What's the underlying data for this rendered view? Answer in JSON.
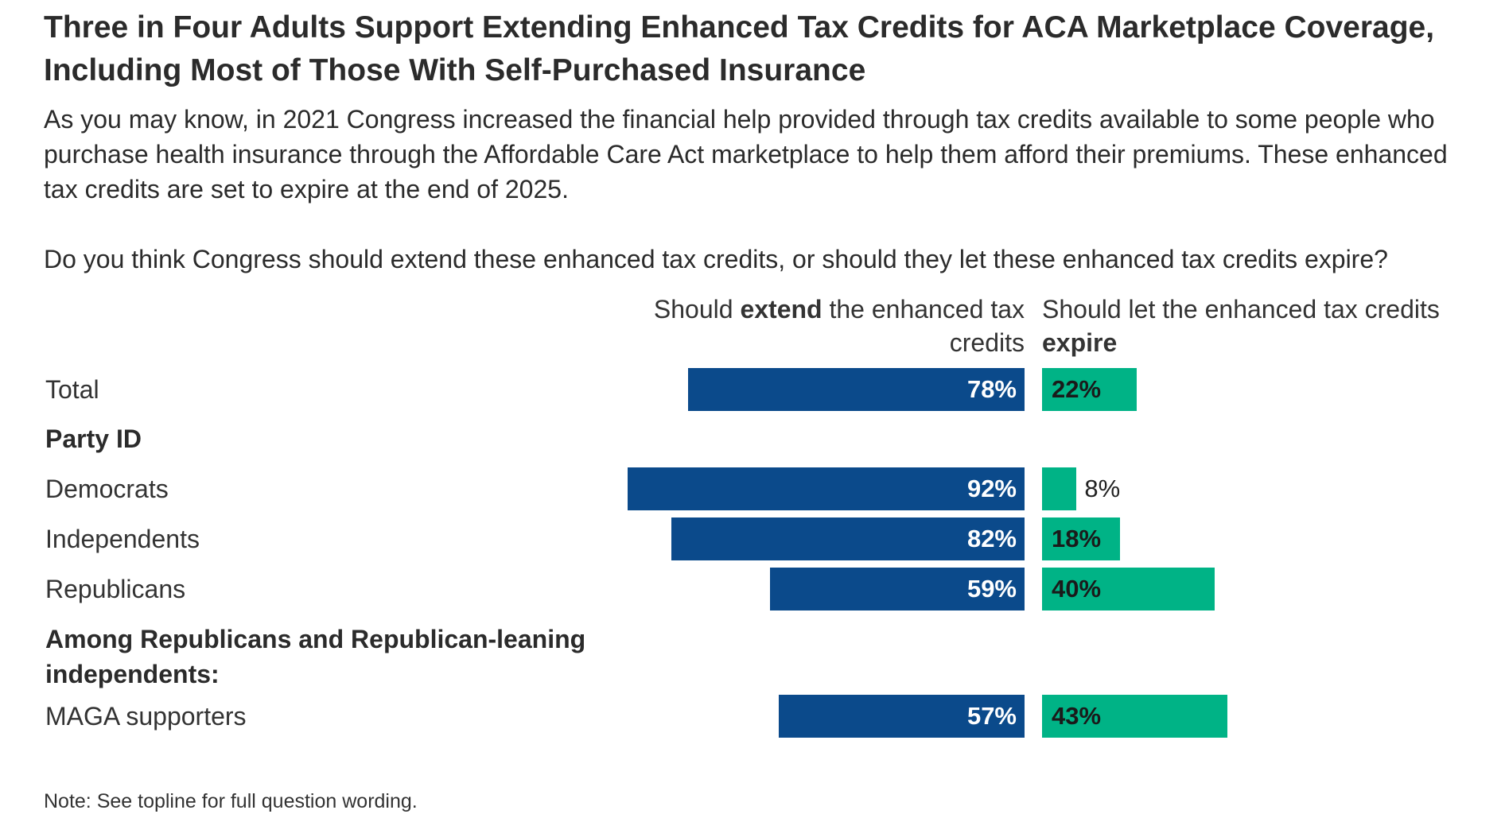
{
  "title": "Three in Four Adults Support Extending Enhanced Tax Credits for ACA Marketplace Coverage, Including Most of Those With Self-Purchased Insurance",
  "subtitle": "As you may know, in 2021 Congress increased the financial help provided through tax credits available to some people who purchase health insurance through the Affordable Care Act marketplace to help them afford their premiums. These enhanced tax credits are set to expire at the end of 2025.",
  "question": "Do you think Congress should extend these enhanced tax credits, or should they let these enhanced tax credits expire?",
  "headers": {
    "extend_pre": "Should ",
    "extend_bold": "extend",
    "extend_post": " the enhanced tax credits",
    "expire_pre": "Should let the enhanced tax credits ",
    "expire_bold": "expire"
  },
  "note": "Note: See topline for full question wording.",
  "colors": {
    "extend": "#0b4a8b",
    "expire": "#00b386"
  },
  "chart_data": {
    "type": "bar",
    "orientation": "horizontal-diverging",
    "series": [
      {
        "name": "Should extend the enhanced tax credits",
        "key": "extend"
      },
      {
        "name": "Should let the enhanced tax credits expire",
        "key": "expire"
      }
    ],
    "rows": [
      {
        "label": "Total",
        "kind": "data",
        "extend": 78,
        "expire": 22,
        "extend_label": "78%",
        "expire_label": "22%"
      },
      {
        "label": "Party ID",
        "kind": "group"
      },
      {
        "label": "Democrats",
        "kind": "data",
        "extend": 92,
        "expire": 8,
        "extend_label": "92%",
        "expire_label": "8%"
      },
      {
        "label": "Independents",
        "kind": "data",
        "extend": 82,
        "expire": 18,
        "extend_label": "82%",
        "expire_label": "18%"
      },
      {
        "label": "Republicans",
        "kind": "data",
        "extend": 59,
        "expire": 40,
        "extend_label": "59%",
        "expire_label": "40%"
      },
      {
        "label": "Among Republicans and Republican-leaning independents:",
        "kind": "group"
      },
      {
        "label": "MAGA supporters",
        "kind": "data",
        "extend": 57,
        "expire": 43,
        "extend_label": "57%",
        "expire_label": "43%"
      }
    ]
  }
}
